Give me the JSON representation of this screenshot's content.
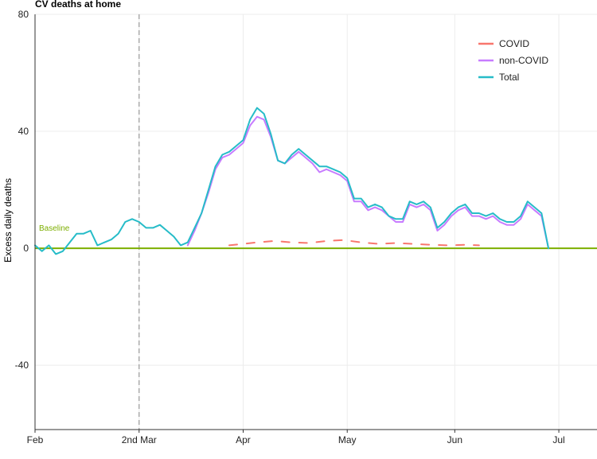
{
  "chart_data": {
    "type": "line",
    "title": "CV deaths at home",
    "xlabel": "",
    "ylabel": "Excess daily deaths",
    "ylim": [
      -62,
      80
    ],
    "yticks": [
      80,
      40,
      0,
      -40
    ],
    "xlim": [
      "2020-02-01",
      "2020-07-12"
    ],
    "xticks": [
      {
        "date": "2020-02-01",
        "label": "Feb"
      },
      {
        "date": "2020-03-02",
        "label": "2nd Mar"
      },
      {
        "date": "2020-04-01",
        "label": "Apr"
      },
      {
        "date": "2020-05-01",
        "label": "May"
      },
      {
        "date": "2020-06-01",
        "label": "Jun"
      },
      {
        "date": "2020-07-01",
        "label": "Jul"
      }
    ],
    "grid": true,
    "legend_position": "top-right",
    "baseline": {
      "label": "Baseline",
      "value": 0,
      "color": "#7cae00"
    },
    "vline": {
      "date": "2020-03-02",
      "style": "dashed"
    },
    "series": [
      {
        "name": "COVID",
        "color": "#f8766d",
        "style": "dashed",
        "x": [
          "2020-03-28",
          "2020-04-01",
          "2020-04-05",
          "2020-04-10",
          "2020-04-15",
          "2020-04-20",
          "2020-04-25",
          "2020-04-30",
          "2020-05-05",
          "2020-05-10",
          "2020-05-15",
          "2020-05-20",
          "2020-05-25",
          "2020-05-30",
          "2020-06-04",
          "2020-06-08"
        ],
        "y": [
          1,
          1.5,
          2,
          2.5,
          2,
          1.8,
          2.5,
          2.8,
          2,
          1.5,
          1.8,
          1.5,
          1.2,
          1,
          1.2,
          1
        ]
      },
      {
        "name": "non-COVID",
        "color": "#c77cff",
        "style": "solid",
        "x": [
          "2020-03-16",
          "2020-03-18",
          "2020-03-20",
          "2020-03-22",
          "2020-03-24",
          "2020-03-26",
          "2020-03-28",
          "2020-03-30",
          "2020-04-01",
          "2020-04-03",
          "2020-04-05",
          "2020-04-07",
          "2020-04-09",
          "2020-04-11",
          "2020-04-13",
          "2020-04-15",
          "2020-04-17",
          "2020-04-19",
          "2020-04-21",
          "2020-04-23",
          "2020-04-25",
          "2020-04-27",
          "2020-04-29",
          "2020-05-01",
          "2020-05-03",
          "2020-05-05",
          "2020-05-07",
          "2020-05-09",
          "2020-05-11",
          "2020-05-13",
          "2020-05-15",
          "2020-05-17",
          "2020-05-19",
          "2020-05-21",
          "2020-05-23",
          "2020-05-25",
          "2020-05-27",
          "2020-05-29",
          "2020-05-31",
          "2020-06-02",
          "2020-06-04",
          "2020-06-06",
          "2020-06-08",
          "2020-06-10",
          "2020-06-12",
          "2020-06-14",
          "2020-06-16",
          "2020-06-18",
          "2020-06-20",
          "2020-06-22",
          "2020-06-24",
          "2020-06-26",
          "2020-06-28"
        ],
        "y": [
          1,
          6,
          12,
          19,
          27,
          31,
          32,
          34,
          36,
          42,
          45,
          44,
          38,
          30,
          29,
          31,
          33,
          31,
          29,
          26,
          27,
          26,
          25,
          23,
          16,
          16,
          13,
          14,
          13,
          11,
          9,
          9,
          15,
          14,
          15,
          13,
          6,
          8,
          11,
          13,
          14,
          11,
          11,
          10,
          11,
          9,
          8,
          8,
          10,
          15,
          13,
          11,
          0
        ]
      },
      {
        "name": "Total",
        "color": "#26bcc8",
        "style": "solid",
        "x": [
          "2020-02-01",
          "2020-02-03",
          "2020-02-05",
          "2020-02-07",
          "2020-02-09",
          "2020-02-11",
          "2020-02-13",
          "2020-02-15",
          "2020-02-17",
          "2020-02-19",
          "2020-02-21",
          "2020-02-23",
          "2020-02-25",
          "2020-02-27",
          "2020-02-29",
          "2020-03-02",
          "2020-03-04",
          "2020-03-06",
          "2020-03-08",
          "2020-03-10",
          "2020-03-12",
          "2020-03-14",
          "2020-03-16",
          "2020-03-18",
          "2020-03-20",
          "2020-03-22",
          "2020-03-24",
          "2020-03-26",
          "2020-03-28",
          "2020-03-30",
          "2020-04-01",
          "2020-04-03",
          "2020-04-05",
          "2020-04-07",
          "2020-04-09",
          "2020-04-11",
          "2020-04-13",
          "2020-04-15",
          "2020-04-17",
          "2020-04-19",
          "2020-04-21",
          "2020-04-23",
          "2020-04-25",
          "2020-04-27",
          "2020-04-29",
          "2020-05-01",
          "2020-05-03",
          "2020-05-05",
          "2020-05-07",
          "2020-05-09",
          "2020-05-11",
          "2020-05-13",
          "2020-05-15",
          "2020-05-17",
          "2020-05-19",
          "2020-05-21",
          "2020-05-23",
          "2020-05-25",
          "2020-05-27",
          "2020-05-29",
          "2020-05-31",
          "2020-06-02",
          "2020-06-04",
          "2020-06-06",
          "2020-06-08",
          "2020-06-10",
          "2020-06-12",
          "2020-06-14",
          "2020-06-16",
          "2020-06-18",
          "2020-06-20",
          "2020-06-22",
          "2020-06-24",
          "2020-06-26",
          "2020-06-28"
        ],
        "y": [
          1,
          -1,
          1,
          -2,
          -1,
          2,
          5,
          5,
          6,
          1,
          2,
          3,
          5,
          9,
          10,
          9,
          7,
          7,
          8,
          6,
          4,
          1,
          2,
          7,
          12,
          20,
          28,
          32,
          33,
          35,
          37,
          44,
          48,
          46,
          39,
          30,
          29,
          32,
          34,
          32,
          30,
          28,
          28,
          27,
          26,
          24,
          17,
          17,
          14,
          15,
          14,
          11,
          10,
          10,
          16,
          15,
          16,
          14,
          7,
          9,
          12,
          14,
          15,
          12,
          12,
          11,
          12,
          10,
          9,
          9,
          11,
          16,
          14,
          12,
          0
        ]
      }
    ]
  }
}
